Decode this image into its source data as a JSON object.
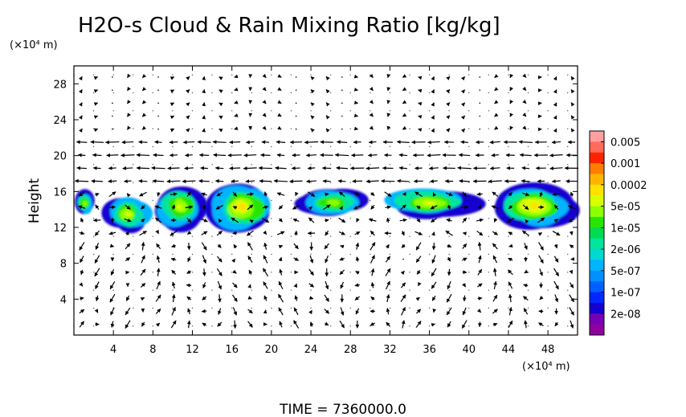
{
  "chart_data": {
    "type": "heatmap",
    "title": "H2O-s Cloud & Rain Mixing Ratio [kg/kg]",
    "ylabel": "Height",
    "x_unit": "(×10⁴ m)",
    "y_unit": "(×10⁴ m)",
    "xlim": [
      0,
      51
    ],
    "ylim": [
      0,
      30
    ],
    "x_ticks": [
      4,
      8,
      12,
      16,
      20,
      24,
      28,
      32,
      36,
      40,
      44,
      48
    ],
    "y_ticks": [
      4,
      8,
      12,
      16,
      20,
      24,
      28
    ],
    "x_tick_labels": [
      "4",
      "8",
      "12",
      "16",
      "20",
      "24",
      "28",
      "32",
      "36",
      "40",
      "44",
      "48"
    ],
    "y_tick_labels": [
      "4",
      "8",
      "12",
      "16",
      "20",
      "24",
      "28"
    ],
    "colorbar": {
      "labels": [
        "0.005",
        "0.001",
        "0.0002",
        "5e-05",
        "1e-05",
        "2e-06",
        "5e-07",
        "1e-07",
        "2e-08"
      ],
      "colors_top_to_bottom": [
        "#ff9f9f",
        "#ff6a5a",
        "#ff2400",
        "#ff7e00",
        "#ffb400",
        "#ffe200",
        "#d8ff00",
        "#8cff00",
        "#28e600",
        "#00dc50",
        "#00e4a0",
        "#00d8d0",
        "#00b4ff",
        "#0090ff",
        "#0060ff",
        "#0028ff",
        "#1400d0",
        "#7800b4",
        "#9000a0"
      ]
    },
    "cloud_blobs": [
      {
        "x_range": [
          0,
          2.2
        ],
        "y_range": [
          13.2,
          16.2
        ],
        "peak": "1e-05"
      },
      {
        "x_range": [
          3,
          8
        ],
        "y_range": [
          11.5,
          15.5
        ],
        "peak": "5e-05"
      },
      {
        "x_range": [
          8,
          13.5
        ],
        "y_range": [
          11.8,
          16.8
        ],
        "peak": "5e-05"
      },
      {
        "x_range": [
          13.5,
          20.5
        ],
        "y_range": [
          11.5,
          17
        ],
        "peak": "0.0002"
      },
      {
        "x_range": [
          22.5,
          30
        ],
        "y_range": [
          13,
          16.5
        ],
        "peak": "1e-05"
      },
      {
        "x_range": [
          31,
          41
        ],
        "y_range": [
          13,
          16.5
        ],
        "peak": "5e-05"
      },
      {
        "x_range": [
          42,
          51
        ],
        "y_range": [
          11.8,
          17
        ],
        "peak": "0.0002"
      }
    ],
    "wind_field": "vector arrows over domain",
    "grid": "dotted"
  },
  "footer": {
    "time_label": "TIME = 7360000.0"
  }
}
